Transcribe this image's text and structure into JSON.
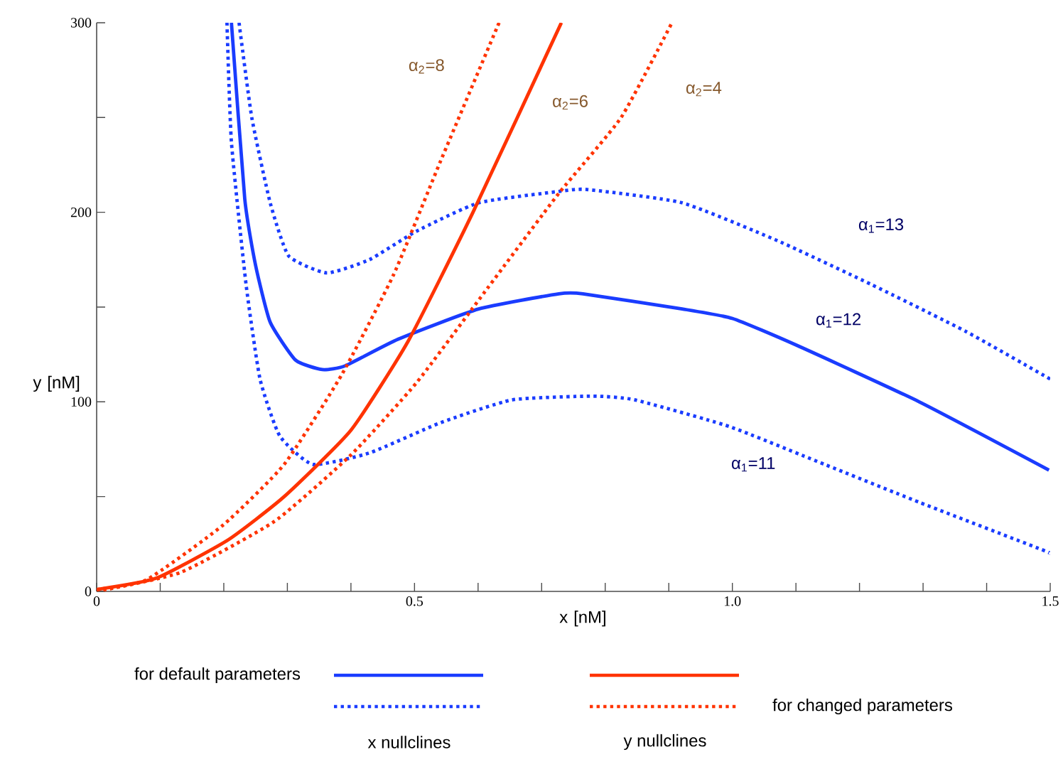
{
  "chart_data": {
    "type": "line",
    "xlabel": "x [nM]",
    "ylabel": "y [nM]",
    "xlim": [
      0,
      1.5
    ],
    "ylim": [
      0,
      300
    ],
    "xticks": [
      0,
      {
        "value": 0.1,
        "label": null
      },
      {
        "value": 0.2,
        "label": null
      },
      {
        "value": 0.3,
        "label": null
      },
      {
        "value": 0.4,
        "label": null
      },
      0.5,
      {
        "value": 0.6,
        "label": null
      },
      {
        "value": 0.7,
        "label": null
      },
      {
        "value": 0.8,
        "label": null
      },
      {
        "value": 0.9,
        "label": null
      },
      {
        "value": 1,
        "label": "1.0"
      },
      {
        "value": 1.1,
        "label": null
      },
      {
        "value": 1.2,
        "label": null
      },
      {
        "value": 1.3,
        "label": null
      },
      {
        "value": 1.4,
        "label": null
      },
      1.5
    ],
    "yticks": [
      0,
      {
        "value": 50,
        "label": null
      },
      100,
      {
        "value": 150,
        "label": null
      },
      200,
      {
        "value": 250,
        "label": null
      },
      300
    ],
    "series": [
      {
        "name": "α$_{1}$=12",
        "color": "#1a3cff",
        "line_style": "solid",
        "x": [
          0.212,
          0.233,
          0.25,
          0.273,
          0.313,
          0.355,
          0.391,
          0.474,
          0.601,
          0.727,
          0.765,
          0.921,
          1.0,
          1.1,
          1.294,
          1.498
        ],
        "values": [
          300,
          207,
          172,
          142,
          122,
          117,
          119,
          133,
          149,
          157,
          157,
          149,
          144,
          130,
          100,
          64
        ]
      },
      {
        "name": "α$_{1}$=13",
        "color": "#1a3cff",
        "line_style": "dotted",
        "x": [
          0.224,
          0.244,
          0.273,
          0.302,
          0.362,
          0.429,
          0.503,
          0.601,
          0.727,
          0.771,
          0.921,
          1.071,
          1.218,
          1.368,
          1.5
        ],
        "values": [
          300,
          250,
          205,
          177,
          168,
          175,
          190,
          205,
          211,
          212,
          205,
          185,
          162,
          137,
          112
        ]
      },
      {
        "name": "α$_{1}$=11",
        "color": "#1a3cff",
        "line_style": "dotted",
        "x": [
          0.205,
          0.212,
          0.235,
          0.257,
          0.288,
          0.34,
          0.429,
          0.541,
          0.653,
          0.78,
          0.847,
          0.995,
          1.145,
          1.294,
          1.487,
          1.5
        ],
        "values": [
          300,
          237,
          162,
          112,
          82,
          67,
          73,
          89,
          101,
          103,
          101,
          87,
          67,
          47,
          22,
          20
        ]
      },
      {
        "name": "α$_{2}$=6",
        "color": "#ff3300",
        "line_style": "solid",
        "x": [
          0,
          0.094,
          0.206,
          0.295,
          0.4,
          0.49,
          0.592,
          0.731
        ],
        "values": [
          1,
          7,
          27,
          50,
          85,
          132,
          200,
          300
        ]
      },
      {
        "name": "α$_{2}$=8",
        "color": "#ff3300",
        "line_style": "dotted",
        "x": [
          0,
          0.078,
          0.199,
          0.295,
          0.385,
          0.467,
          0.541,
          0.633
        ],
        "values": [
          1,
          6,
          35,
          67,
          114,
          167,
          227,
          300
        ]
      },
      {
        "name": "α$_{2}$=4",
        "color": "#ff3300",
        "line_style": "dotted",
        "x": [
          0,
          0.132,
          0.28,
          0.4,
          0.503,
          0.615,
          0.727,
          0.825,
          0.905
        ],
        "values": [
          0,
          10,
          37,
          72,
          110,
          160,
          210,
          250,
          300
        ]
      }
    ],
    "annotations": [
      "for default parameters",
      "for changed parameters",
      "x nullclines",
      "y nullclines"
    ]
  }
}
